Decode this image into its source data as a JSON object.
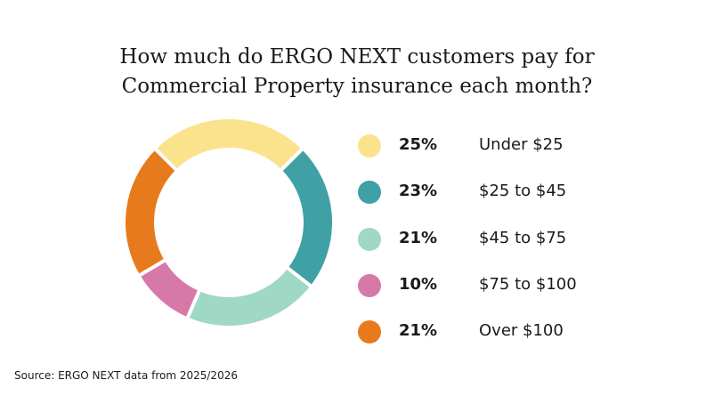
{
  "title_lines": [
    "How much do ERGO NEXT customers pay for",
    "Commercial Property insurance each month?"
  ],
  "source": "Source: ERGO NEXT data from 2025/2026",
  "chart_data": {
    "type": "pie",
    "style": "donut",
    "title": "How much do ERGO NEXT customers pay for Commercial Property insurance each month?",
    "legend_position": "right",
    "slices": [
      {
        "label": "Under $25",
        "value": 25,
        "value_label": "25%",
        "color": "#fbe38e"
      },
      {
        "label": "$25 to $45",
        "value": 23,
        "value_label": "23%",
        "color": "#3fa0a6"
      },
      {
        "label": "$45 to $75",
        "value": 21,
        "value_label": "21%",
        "color": "#9fd8c4"
      },
      {
        "label": "$75 to $100",
        "value": 10,
        "value_label": "10%",
        "color": "#d779a8"
      },
      {
        "label": "Over $100",
        "value": 21,
        "value_label": "21%",
        "color": "#e87a1e"
      }
    ]
  }
}
